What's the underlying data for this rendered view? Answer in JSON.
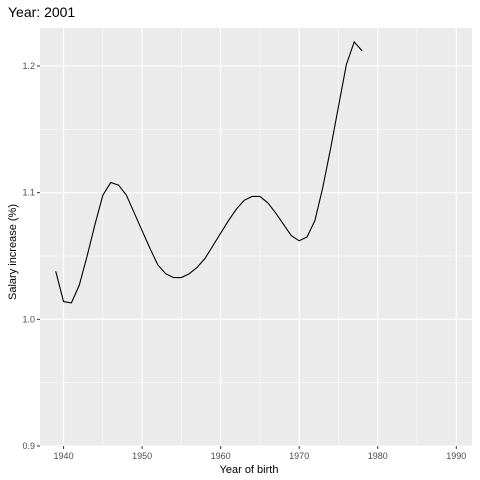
{
  "chart_data": {
    "type": "line",
    "title": "Year: 2001",
    "xlabel": "Year of birth",
    "ylabel": "Salary increase (%)",
    "xlim": [
      1937,
      1992
    ],
    "ylim": [
      0.9,
      1.23
    ],
    "x_ticks": [
      1940,
      1950,
      1960,
      1970,
      1980,
      1990
    ],
    "x_tick_labels": [
      "1940",
      "1950",
      "1960",
      "1970",
      "1980",
      "1990"
    ],
    "y_ticks": [
      0.9,
      1.0,
      1.1,
      1.2
    ],
    "y_tick_labels": [
      "0.9",
      "1.0",
      "1.1",
      "1.2"
    ],
    "grid": true,
    "background": "#ebebeb",
    "grid_color": "#ffffff",
    "line_color": "#000000",
    "series": [
      {
        "x": [
          1939,
          1940,
          1941,
          1942,
          1943,
          1944,
          1945,
          1946,
          1947,
          1948,
          1949,
          1950,
          1951,
          1952,
          1953,
          1954,
          1955,
          1956,
          1957,
          1958,
          1959,
          1960,
          1961,
          1962,
          1963,
          1964,
          1965,
          1966,
          1967,
          1968,
          1969,
          1970,
          1971,
          1972,
          1973,
          1974,
          1975,
          1976,
          1977,
          1978
        ],
        "values": [
          1.038,
          1.014,
          1.013,
          1.027,
          1.05,
          1.075,
          1.098,
          1.108,
          1.106,
          1.098,
          1.084,
          1.07,
          1.056,
          1.043,
          1.036,
          1.033,
          1.033,
          1.036,
          1.041,
          1.048,
          1.058,
          1.068,
          1.078,
          1.087,
          1.094,
          1.097,
          1.097,
          1.092,
          1.084,
          1.075,
          1.066,
          1.062,
          1.065,
          1.078,
          1.104,
          1.135,
          1.168,
          1.201,
          1.219,
          1.212
        ]
      }
    ]
  }
}
